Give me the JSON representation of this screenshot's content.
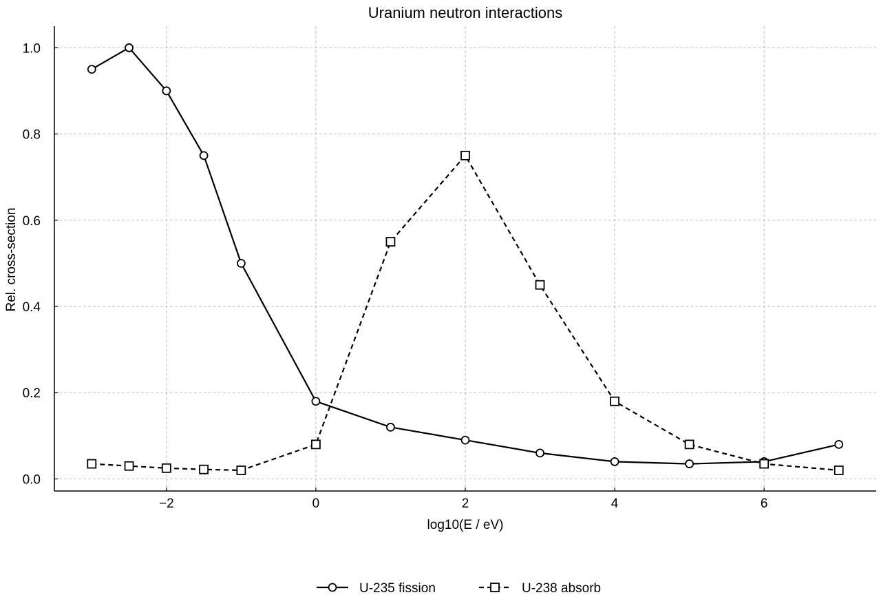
{
  "chart_data": {
    "type": "line",
    "title": "Uranium neutron interactions",
    "xlabel": "log10(E / eV)",
    "ylabel": "Rel. cross-section",
    "xlim": [
      -3.5,
      7.5
    ],
    "ylim": [
      -0.028,
      1.05
    ],
    "xticks": [
      -2,
      0,
      2,
      4,
      6
    ],
    "xtick_labels": [
      "−2",
      "0",
      "2",
      "4",
      "6"
    ],
    "yticks": [
      0.0,
      0.2,
      0.4,
      0.6,
      0.8,
      1.0
    ],
    "ytick_labels": [
      "0.0",
      "0.2",
      "0.4",
      "0.6",
      "0.8",
      "1.0"
    ],
    "grid": true,
    "legend_position": "bottom-center",
    "series": [
      {
        "name": "U-235 fission",
        "line_style": "solid",
        "marker": "circle",
        "color": "#000000",
        "x": [
          -3,
          -2.5,
          -2,
          -1.5,
          -1,
          0,
          1,
          2,
          3,
          4,
          5,
          6,
          7
        ],
        "y": [
          0.95,
          1.0,
          0.9,
          0.75,
          0.5,
          0.18,
          0.12,
          0.09,
          0.06,
          0.04,
          0.035,
          0.04,
          0.08
        ]
      },
      {
        "name": "U-238 absorb",
        "line_style": "dashed",
        "marker": "square",
        "color": "#000000",
        "x": [
          -3,
          -2.5,
          -2,
          -1.5,
          -1,
          0,
          1,
          2,
          3,
          4,
          5,
          6,
          7
        ],
        "y": [
          0.035,
          0.03,
          0.025,
          0.022,
          0.02,
          0.08,
          0.55,
          0.75,
          0.45,
          0.18,
          0.08,
          0.035,
          0.02
        ]
      }
    ]
  }
}
